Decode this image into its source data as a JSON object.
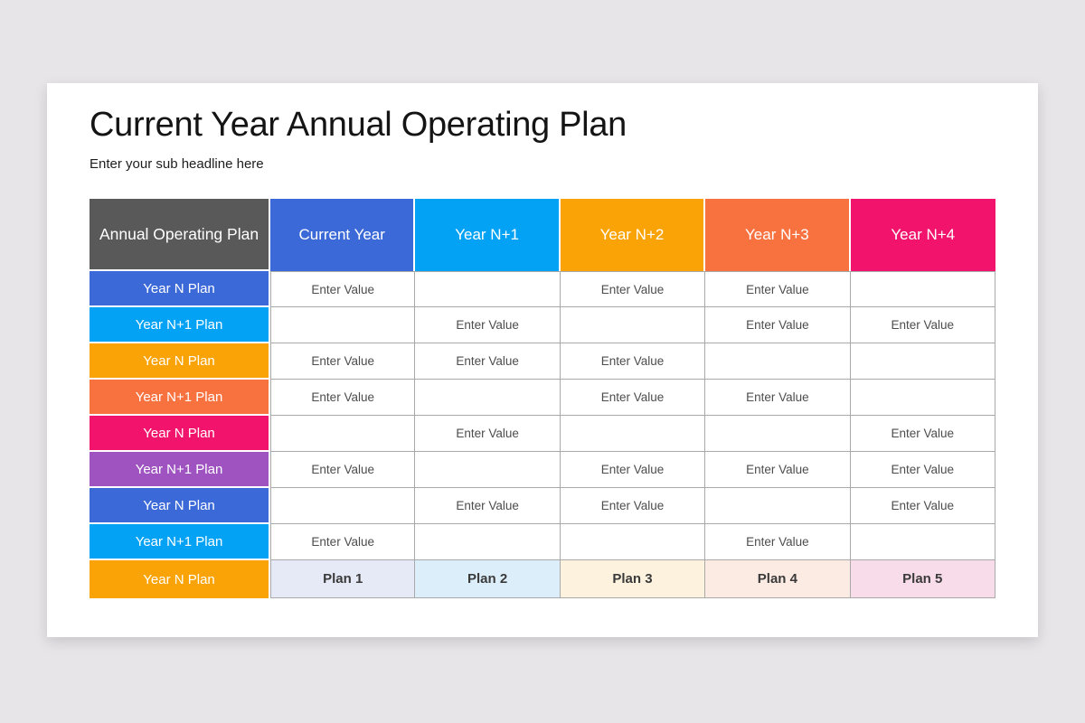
{
  "page": {
    "background_color": "#e7e5e8",
    "slide_color": "#ffffff"
  },
  "header": {
    "title": "Current Year Annual Operating Plan",
    "subtitle": "Enter your sub headline here"
  },
  "table": {
    "corner_label": "Annual Operating Plan",
    "corner_color": "#595959",
    "columns": [
      {
        "label": "Current Year",
        "color": "#3c69d8",
        "plan_tint": "#e6eaf7"
      },
      {
        "label": "Year N+1",
        "color": "#04a2f4",
        "plan_tint": "#dceefa"
      },
      {
        "label": "Year N+2",
        "color": "#faa306",
        "plan_tint": "#fcf2de"
      },
      {
        "label": "Year N+3",
        "color": "#f87240",
        "plan_tint": "#fcebe3"
      },
      {
        "label": "Year N+4",
        "color": "#f2146c",
        "plan_tint": "#f9dcea"
      }
    ],
    "rows": [
      {
        "label": "Year N Plan",
        "color": "#3c69d8",
        "cells": [
          "Enter Value",
          "",
          "Enter Value",
          "Enter Value",
          ""
        ]
      },
      {
        "label": "Year N+1 Plan",
        "color": "#04a2f4",
        "cells": [
          "",
          "Enter Value",
          "",
          "Enter Value",
          "Enter Value"
        ]
      },
      {
        "label": "Year N Plan",
        "color": "#faa306",
        "cells": [
          "Enter Value",
          "Enter Value",
          "Enter Value",
          "",
          ""
        ]
      },
      {
        "label": "Year N+1 Plan",
        "color": "#f87240",
        "cells": [
          "Enter Value",
          "",
          "Enter Value",
          "Enter Value",
          ""
        ]
      },
      {
        "label": "Year N Plan",
        "color": "#f2146c",
        "cells": [
          "",
          "Enter Value",
          "",
          "",
          "Enter Value"
        ]
      },
      {
        "label": "Year N+1 Plan",
        "color": "#9e53c1",
        "cells": [
          "Enter Value",
          "",
          "Enter Value",
          "Enter Value",
          "Enter Value"
        ]
      },
      {
        "label": "Year N Plan",
        "color": "#3c69d8",
        "cells": [
          "",
          "Enter Value",
          "Enter Value",
          "",
          "Enter Value"
        ]
      },
      {
        "label": "Year N+1 Plan",
        "color": "#04a2f4",
        "cells": [
          "Enter Value",
          "",
          "",
          "Enter Value",
          ""
        ]
      }
    ],
    "plan_row": {
      "label": "Year N Plan",
      "color": "#faa306",
      "cells": [
        "Plan 1",
        "Plan 2",
        "Plan 3",
        "Plan 4",
        "Plan 5"
      ]
    }
  },
  "colors": {
    "grid_border": "#a9a9a9",
    "cell_text": "#4d4d4d",
    "plan_text": "#3a3a3a"
  }
}
